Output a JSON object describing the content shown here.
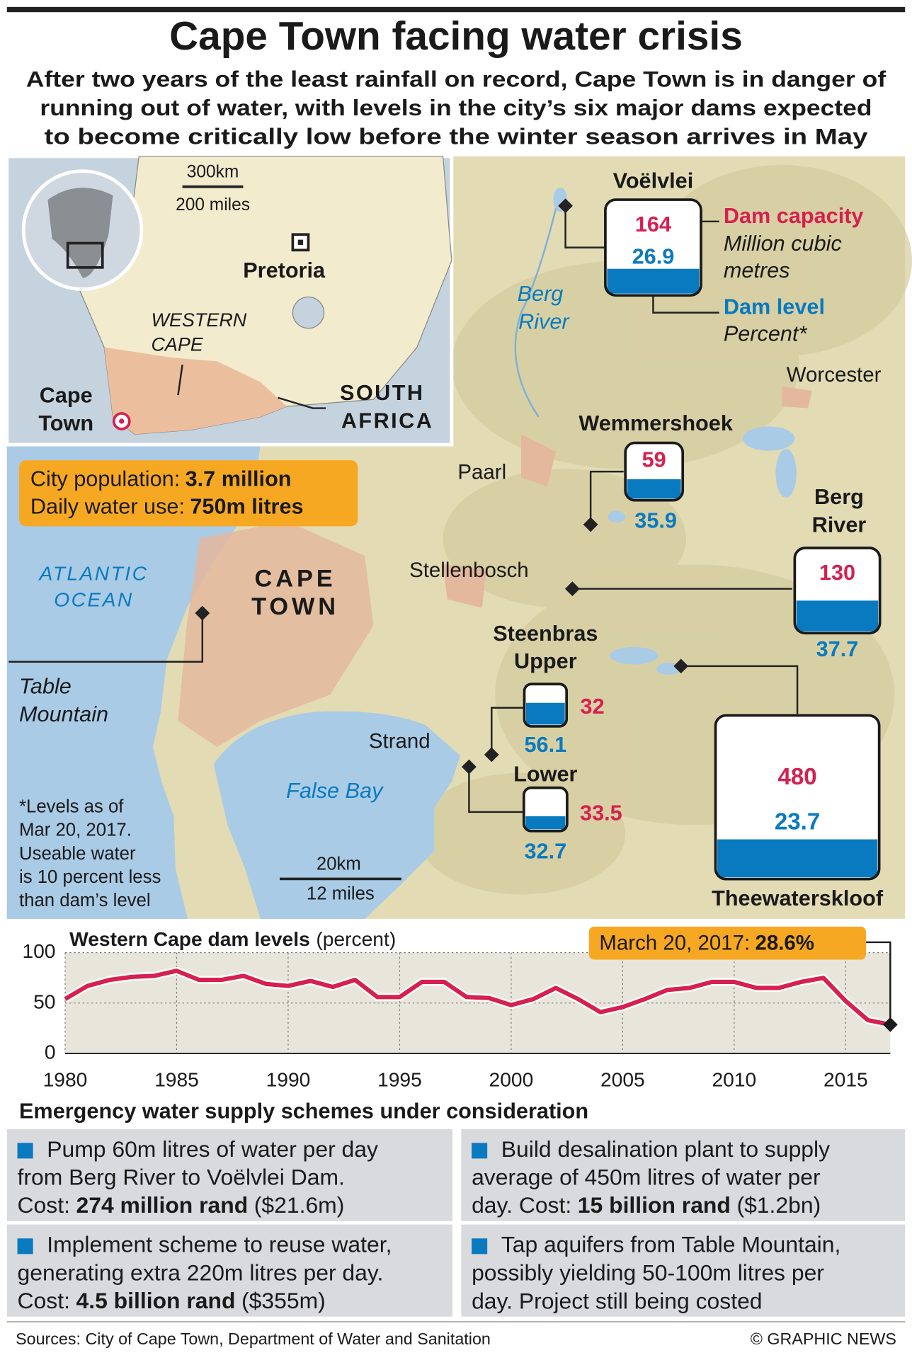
{
  "header": {
    "title": "Cape Town facing water crisis",
    "subtitle": [
      "After two years of the least rainfall on record, Cape Town is in danger of",
      "running out of water, with levels in the city’s six major dams expected",
      "to become critically low before the winter season arrives in May"
    ]
  },
  "map": {
    "inset": {
      "scale_km": "300km",
      "scale_miles": "200 miles",
      "capital": "Pretoria",
      "region": [
        "WESTERN",
        "CAPE"
      ],
      "city": [
        "Cape",
        "Town"
      ],
      "country": [
        "SOUTH",
        "AFRICA"
      ]
    },
    "population": [
      {
        "label": "City population:",
        "value": "3.7 million"
      },
      {
        "label": "Daily water use:",
        "value": "750m litres"
      }
    ],
    "river": [
      "Berg",
      "River"
    ],
    "towns": [
      "Worcester",
      "Paarl",
      "Stellenbosch",
      "Strand"
    ],
    "city": [
      "CAPE",
      "TOWN"
    ],
    "ocean": [
      "ATLANTIC",
      "OCEAN"
    ],
    "bay": "False Bay",
    "mountain": [
      "Table",
      "Mountain"
    ],
    "footnote": [
      "*Levels as of",
      "Mar 20, 2017.",
      "Useable water",
      "is 10 percent less",
      "than dam’s level"
    ],
    "scale_km": "20km",
    "scale_miles": "12 miles"
  },
  "dams": {
    "legend": {
      "capacity": "Dam capacity",
      "capacity_unit": [
        "Million cubic",
        "metres"
      ],
      "level": "Dam level",
      "level_unit": "Percent*"
    },
    "items": [
      {
        "name": [
          "Voëlvlei"
        ],
        "capacity": 164,
        "level": 26.9
      },
      {
        "name": [
          "Wemmershoek"
        ],
        "capacity": 59,
        "level": 35.9
      },
      {
        "name": [
          "Berg",
          "River"
        ],
        "capacity": 130,
        "level": 37.7
      },
      {
        "name": [
          "Steenbras",
          "Upper"
        ],
        "capacity": 32,
        "level": 56.1
      },
      {
        "name": [
          "Lower"
        ],
        "capacity": 33.5,
        "level": 32.7
      },
      {
        "name": [
          "Theewaterskloof"
        ],
        "capacity": 480,
        "level": 23.7
      }
    ]
  },
  "chart_data": {
    "type": "line",
    "title": "Western Cape dam levels",
    "unit": "(percent)",
    "x": [
      1980,
      1981,
      1982,
      1983,
      1984,
      1985,
      1986,
      1987,
      1988,
      1989,
      1990,
      1991,
      1992,
      1993,
      1994,
      1995,
      1996,
      1997,
      1998,
      1999,
      2000,
      2001,
      2002,
      2003,
      2004,
      2005,
      2006,
      2007,
      2008,
      2009,
      2010,
      2011,
      2012,
      2013,
      2014,
      2015,
      2016,
      2017
    ],
    "values": [
      54,
      67,
      73,
      76,
      77,
      82,
      73,
      73,
      77,
      69,
      67,
      72,
      66,
      73,
      56,
      56,
      71,
      71,
      56,
      55,
      48,
      54,
      65,
      54,
      41,
      46,
      54,
      63,
      65,
      71,
      71,
      65,
      65,
      71,
      75,
      52,
      33,
      28.6
    ],
    "color": "#d6204f",
    "xlim": [
      1980,
      2017
    ],
    "xticks": [
      1980,
      1985,
      1990,
      1995,
      2000,
      2005,
      2010,
      2015
    ],
    "ylim": [
      0,
      100
    ],
    "yticks": [
      0,
      50,
      100
    ],
    "grid": true,
    "annotation": {
      "label": "March 20, 2017:",
      "value_label": "28.6%"
    }
  },
  "schemes": {
    "heading": "Emergency water supply schemes under consideration",
    "items": [
      {
        "lines": [
          "Pump 60m litres of water per day",
          "from Berg River to Voëlvlei Dam."
        ],
        "cost_label": "Cost:",
        "cost": "274 million rand",
        "cost_usd": "($21.6m)"
      },
      {
        "lines": [
          "Build desalination plant to supply",
          "average of 450m litres of water per"
        ],
        "cost_label": "day. Cost:",
        "cost": "15 billion rand",
        "cost_usd": "($1.2bn)"
      },
      {
        "lines": [
          "Implement scheme to reuse water,",
          "generating extra 220m litres per day."
        ],
        "cost_label": "Cost:",
        "cost": "4.5 billion rand",
        "cost_usd": "($355m)"
      },
      {
        "lines": [
          "Tap aquifers from Table Mountain,",
          "possibly yielding 50-100m litres per",
          "day. Project still being costed"
        ]
      }
    ]
  },
  "footer": {
    "sources": "Sources: City of Cape Town, Department of Water and Sanitation",
    "credit": "© GRAPHIC NEWS"
  }
}
